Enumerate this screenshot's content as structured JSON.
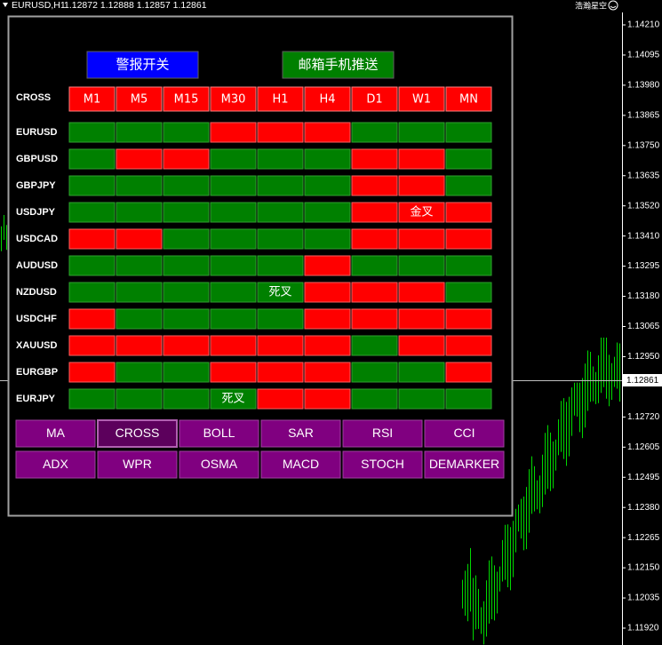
{
  "header": {
    "symbol": "EURUSD,H1",
    "quote": "1.12872 1.12888 1.12857 1.12861",
    "user": "浩瀚星空"
  },
  "axis": {
    "labels": [
      "1.14210",
      "1.14095",
      "1.13980",
      "1.13865",
      "1.13750",
      "1.13635",
      "1.13520",
      "1.13410",
      "1.13295",
      "1.13180",
      "1.13065",
      "1.12950",
      null,
      "1.12720",
      "1.12605",
      "1.12495",
      "1.12380",
      "1.12265",
      "1.12150",
      "1.12035",
      "1.11920"
    ],
    "current": "1.12861"
  },
  "panel": {
    "alert_button": "警报开关",
    "push_button": "邮箱手机推送",
    "corner": "CROSS",
    "timeframes": [
      "M1",
      "M5",
      "M15",
      "M30",
      "H1",
      "H4",
      "D1",
      "W1",
      "MN"
    ],
    "rows": [
      {
        "symbol": "EURUSD",
        "cells": [
          "green",
          "green",
          "green",
          "red",
          "red",
          "red",
          "green",
          "green",
          "green"
        ]
      },
      {
        "symbol": "GBPUSD",
        "cells": [
          "green",
          "red",
          "red",
          "green",
          "green",
          "green",
          "red",
          "red",
          "green"
        ]
      },
      {
        "symbol": "GBPJPY",
        "cells": [
          "green",
          "green",
          "green",
          "green",
          "green",
          "green",
          "red",
          "red",
          "green"
        ]
      },
      {
        "symbol": "USDJPY",
        "cells": [
          "green",
          "green",
          "green",
          "green",
          "green",
          "green",
          "red",
          {
            "color": "red",
            "text": "金叉"
          },
          "red"
        ]
      },
      {
        "symbol": "USDCAD",
        "cells": [
          "red",
          "red",
          "green",
          "green",
          "green",
          "green",
          "red",
          "red",
          "red"
        ]
      },
      {
        "symbol": "AUDUSD",
        "cells": [
          "green",
          "green",
          "green",
          "green",
          "green",
          "red",
          "green",
          "green",
          "green"
        ]
      },
      {
        "symbol": "NZDUSD",
        "cells": [
          "green",
          "green",
          "green",
          "green",
          {
            "color": "green",
            "text": "死叉"
          },
          "red",
          "red",
          "red",
          "green"
        ]
      },
      {
        "symbol": "USDCHF",
        "cells": [
          "red",
          "green",
          "green",
          "green",
          "green",
          "red",
          "red",
          "red",
          "red"
        ]
      },
      {
        "symbol": "XAUUSD",
        "cells": [
          "red",
          "red",
          "red",
          "red",
          "red",
          "red",
          "green",
          "red",
          "red"
        ]
      },
      {
        "symbol": "EURGBP",
        "cells": [
          "red",
          "green",
          "green",
          "red",
          "red",
          "red",
          "green",
          "green",
          "red"
        ]
      },
      {
        "symbol": "EURJPY",
        "cells": [
          "green",
          "green",
          "green",
          {
            "color": "green",
            "text": "死叉"
          },
          "red",
          "red",
          "green",
          "green",
          "green"
        ]
      }
    ],
    "indicators": [
      "MA",
      "CROSS",
      "BOLL",
      "SAR",
      "RSI",
      "CCI",
      "ADX",
      "WPR",
      "OSMA",
      "MACD",
      "STOCH",
      "DEMARKER"
    ],
    "selected_indicator": 1
  }
}
